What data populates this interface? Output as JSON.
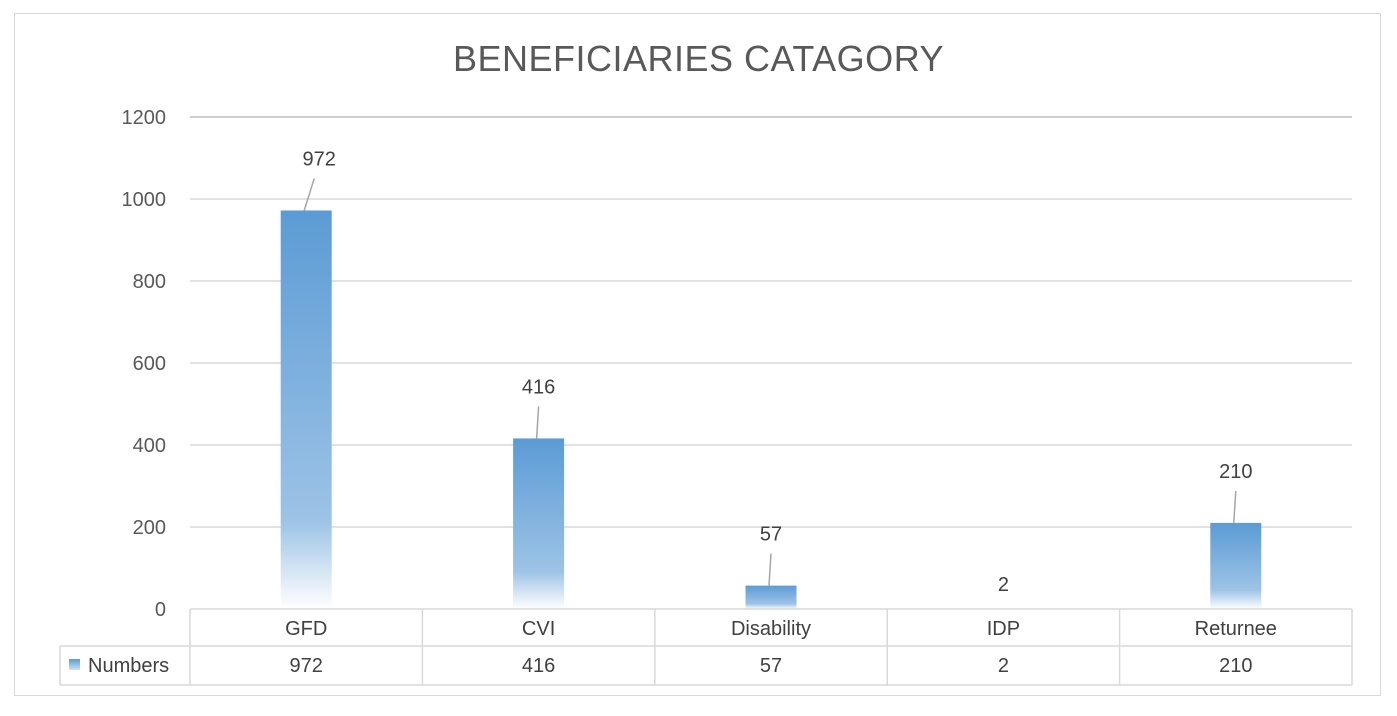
{
  "chart_data": {
    "type": "bar",
    "title": "BENEFICIARIES CATAGORY",
    "categories": [
      "GFD",
      "CVI",
      "Disability",
      "IDP",
      "Returnee"
    ],
    "series": [
      {
        "name": "Numbers",
        "values": [
          972,
          416,
          57,
          2,
          210
        ]
      }
    ],
    "data_labels": [
      "972",
      "416",
      "57",
      "2",
      "210"
    ],
    "ylim": [
      0,
      1200
    ],
    "yticks": [
      0,
      200,
      400,
      600,
      800,
      1000,
      1200
    ],
    "ytick_labels": [
      "0",
      "200",
      "400",
      "600",
      "800",
      "1000",
      "1200"
    ],
    "grid": true,
    "legend": "data-table",
    "bar_color": "#5b9bd5",
    "data_table": {
      "row_label": "Numbers",
      "cells": [
        "972",
        "416",
        "57",
        "2",
        "210"
      ]
    }
  }
}
